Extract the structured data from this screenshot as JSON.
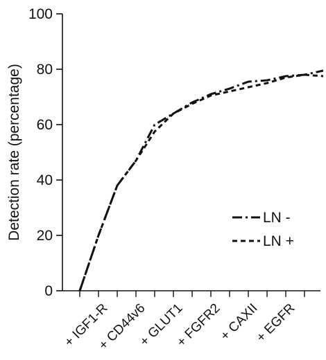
{
  "chart_data": {
    "type": "line",
    "xlabel": "",
    "ylabel": "Detection rate (percentage)",
    "ylim": [
      0,
      100
    ],
    "yticks": [
      0,
      20,
      40,
      60,
      80,
      100
    ],
    "categories": [
      "+ IGF1-R",
      "+ CD44v6",
      "+ GLUT1",
      "+ FGFR2",
      "+ CAXII",
      "+ EGFR"
    ],
    "x": [
      0,
      0.5,
      1,
      1.5,
      2,
      2.5,
      3,
      3.5,
      4,
      4.5,
      5,
      5.5,
      6,
      6.5
    ],
    "series": [
      {
        "name": "LN -",
        "style": "dash-dot",
        "color": "#111111",
        "values": [
          0,
          20,
          38,
          47,
          60,
          64,
          68,
          71,
          73,
          75.5,
          76,
          77.5,
          78,
          79.5
        ]
      },
      {
        "name": "LN +",
        "style": "dashed",
        "color": "#111111",
        "values": [
          0,
          20,
          38,
          47,
          57.5,
          64,
          67.5,
          70.5,
          72,
          73.5,
          75,
          77,
          78,
          77.5
        ]
      }
    ],
    "legend_position": "center-right",
    "grid": false
  }
}
